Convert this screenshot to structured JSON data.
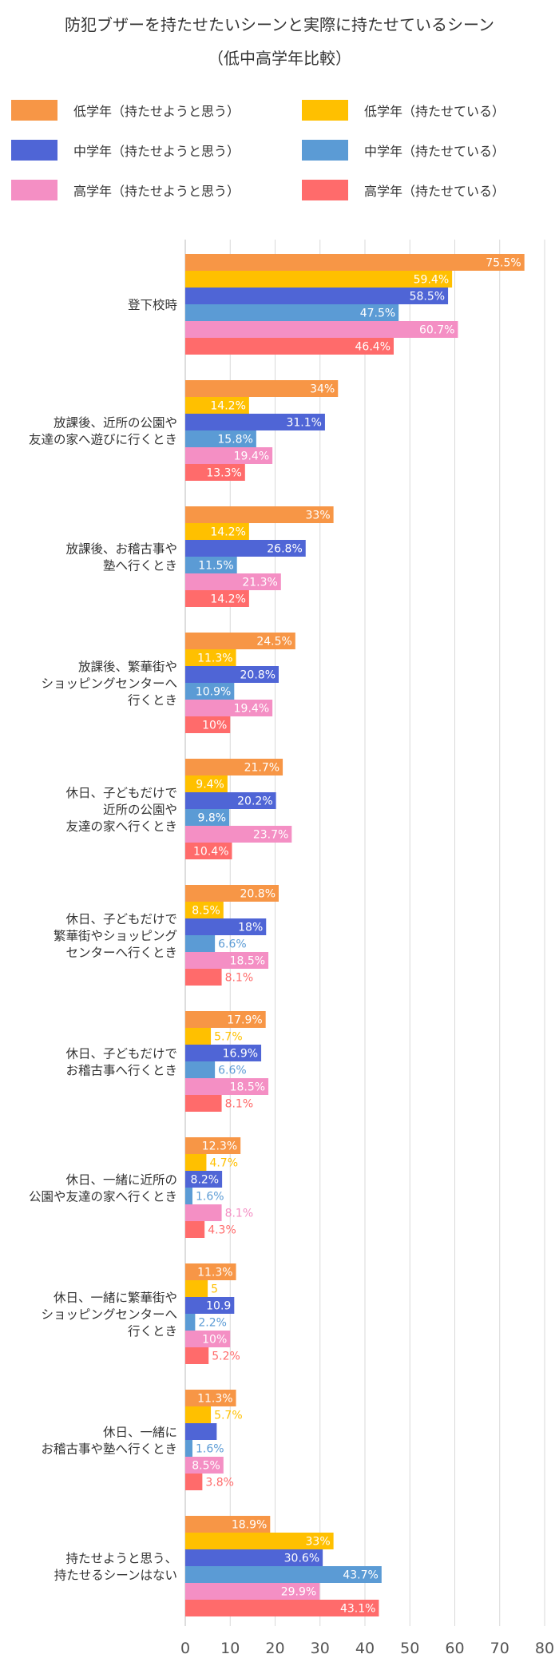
{
  "chart_data": {
    "type": "bar",
    "orientation": "horizontal",
    "title": [
      "防犯ブザーを持たせたいシーンと実際に持たせているシーン",
      "（低中高学年比較）"
    ],
    "xlim": [
      0,
      80
    ],
    "x_ticks": [
      "0",
      "10",
      "20",
      "30",
      "40",
      "50",
      "60",
      "70",
      "80"
    ],
    "grid": true,
    "legend_position": "top",
    "categories": [
      [
        "登下校時"
      ],
      [
        "放課後、近所の公園や",
        "友達の家へ遊びに行くとき"
      ],
      [
        "放課後、お稽古事や",
        "塾へ行くとき"
      ],
      [
        "放課後、繁華街や",
        "ショッピングセンターへ",
        "行くとき"
      ],
      [
        "休日、子どもだけで",
        "近所の公園や",
        "友達の家へ行くとき"
      ],
      [
        "休日、子どもだけで",
        "繁華街やショッピング",
        "センターへ行くとき"
      ],
      [
        "休日、子どもだけで",
        "お稽古事へ行くとき"
      ],
      [
        "休日、一緒に近所の",
        "公園や友達の家へ行くとき"
      ],
      [
        "休日、一緒に繁華街や",
        "ショッピングセンターへ",
        "行くとき"
      ],
      [
        "休日、一緒に",
        "お稽古事や塾へ行くとき"
      ],
      [
        "持たせようと思う、",
        "持たせるシーンはない"
      ]
    ],
    "series": [
      {
        "name": "低学年（持たせようと思う）",
        "color": "#F79646",
        "values": [
          75.5,
          34,
          33,
          24.5,
          21.7,
          20.8,
          17.9,
          12.3,
          11.3,
          11.3,
          18.9
        ],
        "labels": [
          "75.5%",
          "34%",
          "33%",
          "24.5%",
          "21.7%",
          "20.8%",
          "17.9%",
          "12.3%",
          "11.3%",
          "11.3%",
          "18.9%"
        ]
      },
      {
        "name": "低学年（持たせている）",
        "color": "#FFC000",
        "values": [
          59.4,
          14.2,
          14.2,
          11.3,
          9.4,
          8.5,
          5.7,
          4.7,
          5,
          5.7,
          33
        ],
        "labels": [
          "59.4%",
          "14.2%",
          "14.2%",
          "11.3%",
          "9.4%",
          "8.5%",
          "5.7%",
          "4.7%",
          "5",
          "5.7%",
          "33%"
        ]
      },
      {
        "name": "中学年（持たせようと思う）",
        "color": "#4F65D6",
        "values": [
          58.5,
          31.1,
          26.8,
          20.8,
          20.2,
          18,
          16.9,
          8.2,
          10.9,
          7,
          30.6
        ],
        "labels": [
          "58.5%",
          "31.1%",
          "26.8%",
          "20.8%",
          "20.2%",
          "18%",
          "16.9%",
          "8.2%",
          "10.9",
          "",
          "30.6%"
        ]
      },
      {
        "name": "中学年（持たせている）",
        "color": "#5B9BD5",
        "values": [
          47.5,
          15.8,
          11.5,
          10.9,
          9.8,
          6.6,
          6.6,
          1.6,
          2.2,
          1.6,
          43.7
        ],
        "labels": [
          "47.5%",
          "15.8%",
          "11.5%",
          "10.9%",
          "9.8%",
          "6.6%",
          "6.6%",
          "1.6%",
          "2.2%",
          "1.6%",
          "43.7%"
        ]
      },
      {
        "name": "高学年（持たせようと思う）",
        "color": "#F48FC4",
        "values": [
          60.7,
          19.4,
          21.3,
          19.4,
          23.7,
          18.5,
          18.5,
          8.1,
          10,
          8.5,
          29.9
        ],
        "labels": [
          "60.7%",
          "19.4%",
          "21.3%",
          "19.4%",
          "23.7%",
          "18.5%",
          "18.5%",
          "8.1%",
          "10%",
          "8.5%",
          "29.9%"
        ]
      },
      {
        "name": "高学年（持たせている）",
        "color": "#FF6B6B",
        "values": [
          46.4,
          13.3,
          14.2,
          10,
          10.4,
          8.1,
          8.1,
          4.3,
          5.2,
          3.8,
          43.1
        ],
        "labels": [
          "46.4%",
          "13.3%",
          "14.2%",
          "10%",
          "10.4%",
          "8.1%",
          "8.1%",
          "4.3%",
          "5.2%",
          "3.8%",
          "43.1%"
        ]
      }
    ]
  }
}
